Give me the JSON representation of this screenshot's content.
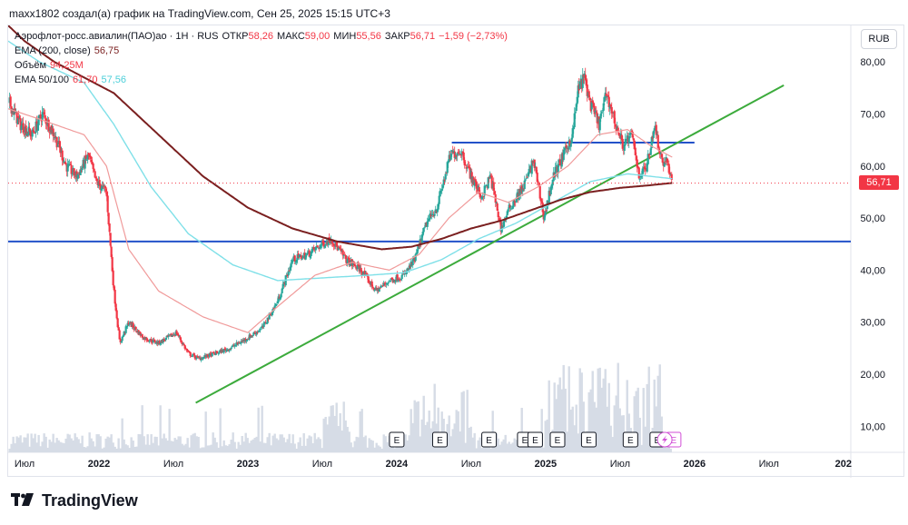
{
  "header": {
    "author_line": "maxx1802 создал(а) график на TradingView.com, Сен 25, 2025 15:15 UTC+3"
  },
  "legend": {
    "symbol": "Аэрофлот-росс.авиалин(ПАО)ао · 1Н · RUS",
    "open_label": "ОТКР",
    "open": "58,26",
    "high_label": "МАКС",
    "high": "59,00",
    "low_label": "МИН",
    "low": "55,56",
    "close_label": "ЗАКР",
    "close": "56,71",
    "change": "−1,59 (−2,73%)",
    "ema200_label": "EMA (200, close)",
    "ema200_value": "56,75",
    "volume_label": "Объём",
    "volume_value": "94,25M",
    "ema50_100_label": "EMA 50/100",
    "ema50_value": "61,70",
    "ema100_value": "57,56"
  },
  "currency_button": "RUB",
  "price_tag": "56,71",
  "footer": {
    "brand": "TradingView"
  },
  "colors": {
    "up": "#26a69a",
    "down": "#f23645",
    "ema200": "#7a1f1f",
    "ema50": "#f09a9a",
    "ema100": "#7fe0e8",
    "trend": "#3cab3c",
    "level": "#2352c9",
    "volume": "#d6dce6"
  },
  "chart_data": {
    "type": "candlestick",
    "title": "Аэрофлот-росс.авиалин(ПАО)ао · 1Н · RUS",
    "ylim": [
      5,
      87
    ],
    "y_ticks": [
      "80,00",
      "70,00",
      "60,00",
      "50,00",
      "40,00",
      "30,00",
      "20,00",
      "10,00"
    ],
    "y_tick_values": [
      80,
      70,
      60,
      50,
      40,
      30,
      20,
      10
    ],
    "x_ticks": [
      "Июл",
      "2022",
      "Июл",
      "2023",
      "Июл",
      "2024",
      "Июл",
      "2025",
      "Июл",
      "2026",
      "Июл",
      "202"
    ],
    "x_tick_dates": [
      2021.5,
      2022.0,
      2022.5,
      2023.0,
      2023.5,
      2024.0,
      2024.5,
      2025.0,
      2025.5,
      2026.0,
      2026.5,
      2027.0
    ],
    "x_range": [
      2021.39,
      2027.05
    ],
    "price_anchors": [
      [
        2021.4,
        72
      ],
      [
        2021.47,
        68
      ],
      [
        2021.55,
        66
      ],
      [
        2021.62,
        70
      ],
      [
        2021.7,
        66
      ],
      [
        2021.78,
        60
      ],
      [
        2021.85,
        58
      ],
      [
        2021.93,
        62
      ],
      [
        2021.98,
        57
      ],
      [
        2022.05,
        55
      ],
      [
        2022.1,
        36
      ],
      [
        2022.14,
        26
      ],
      [
        2022.2,
        30
      ],
      [
        2022.3,
        27
      ],
      [
        2022.4,
        26
      ],
      [
        2022.52,
        28
      ],
      [
        2022.6,
        24
      ],
      [
        2022.67,
        23
      ],
      [
        2022.78,
        24
      ],
      [
        2022.88,
        25
      ],
      [
        2023.0,
        27
      ],
      [
        2023.1,
        29
      ],
      [
        2023.2,
        34
      ],
      [
        2023.3,
        42
      ],
      [
        2023.4,
        43
      ],
      [
        2023.5,
        45
      ],
      [
        2023.56,
        46
      ],
      [
        2023.66,
        42
      ],
      [
        2023.76,
        40
      ],
      [
        2023.86,
        36
      ],
      [
        2023.95,
        38
      ],
      [
        2024.05,
        39
      ],
      [
        2024.12,
        42
      ],
      [
        2024.2,
        49
      ],
      [
        2024.27,
        52
      ],
      [
        2024.36,
        62
      ],
      [
        2024.43,
        63
      ],
      [
        2024.5,
        58
      ],
      [
        2024.57,
        54
      ],
      [
        2024.63,
        58
      ],
      [
        2024.7,
        48
      ],
      [
        2024.76,
        52
      ],
      [
        2024.85,
        56
      ],
      [
        2024.92,
        61
      ],
      [
        2024.99,
        50
      ],
      [
        2025.05,
        58
      ],
      [
        2025.12,
        62
      ],
      [
        2025.18,
        66
      ],
      [
        2025.22,
        75
      ],
      [
        2025.26,
        77
      ],
      [
        2025.3,
        72
      ],
      [
        2025.36,
        68
      ],
      [
        2025.41,
        74
      ],
      [
        2025.47,
        68
      ],
      [
        2025.52,
        64
      ],
      [
        2025.58,
        66
      ],
      [
        2025.63,
        58
      ],
      [
        2025.68,
        60
      ],
      [
        2025.73,
        68
      ],
      [
        2025.76,
        64
      ],
      [
        2025.79,
        60
      ],
      [
        2025.81,
        62
      ],
      [
        2025.83,
        58.3
      ],
      [
        2025.85,
        56.7
      ]
    ],
    "ema200_anchors": [
      [
        2021.39,
        87
      ],
      [
        2021.5,
        84
      ],
      [
        2021.7,
        80
      ],
      [
        2021.9,
        77
      ],
      [
        2022.1,
        74
      ],
      [
        2022.4,
        66
      ],
      [
        2022.7,
        58
      ],
      [
        2023.0,
        52
      ],
      [
        2023.3,
        48
      ],
      [
        2023.6,
        45.5
      ],
      [
        2023.9,
        44
      ],
      [
        2024.1,
        44.5
      ],
      [
        2024.3,
        46
      ],
      [
        2024.5,
        48
      ],
      [
        2024.7,
        49.5
      ],
      [
        2024.9,
        51.5
      ],
      [
        2025.1,
        53.5
      ],
      [
        2025.3,
        55
      ],
      [
        2025.5,
        55.8
      ],
      [
        2025.7,
        56.3
      ],
      [
        2025.85,
        56.75
      ]
    ],
    "ema50_anchors": [
      [
        2021.39,
        71
      ],
      [
        2021.6,
        69
      ],
      [
        2021.9,
        66
      ],
      [
        2022.05,
        60
      ],
      [
        2022.2,
        44
      ],
      [
        2022.4,
        36
      ],
      [
        2022.7,
        31
      ],
      [
        2023.0,
        28
      ],
      [
        2023.2,
        33
      ],
      [
        2023.45,
        39
      ],
      [
        2023.7,
        41.5
      ],
      [
        2023.95,
        40
      ],
      [
        2024.15,
        43
      ],
      [
        2024.35,
        50
      ],
      [
        2024.55,
        55
      ],
      [
        2024.75,
        53
      ],
      [
        2024.95,
        56
      ],
      [
        2025.15,
        60
      ],
      [
        2025.35,
        66
      ],
      [
        2025.55,
        67
      ],
      [
        2025.7,
        64
      ],
      [
        2025.85,
        61.7
      ]
    ],
    "ema100_anchors": [
      [
        2021.39,
        84
      ],
      [
        2021.6,
        80
      ],
      [
        2021.9,
        76
      ],
      [
        2022.1,
        68
      ],
      [
        2022.35,
        56
      ],
      [
        2022.6,
        47
      ],
      [
        2022.9,
        41
      ],
      [
        2023.2,
        38
      ],
      [
        2023.5,
        38.5
      ],
      [
        2023.8,
        39
      ],
      [
        2024.05,
        39.5
      ],
      [
        2024.3,
        42
      ],
      [
        2024.55,
        46
      ],
      [
        2024.8,
        49
      ],
      [
        2025.05,
        53
      ],
      [
        2025.3,
        57
      ],
      [
        2025.55,
        58.5
      ],
      [
        2025.85,
        57.56
      ]
    ],
    "support_line": {
      "start": [
        2022.65,
        14.5
      ],
      "end": [
        2026.6,
        75.5
      ]
    },
    "horizontal_levels": [
      {
        "value": 45.5,
        "from": 2021.39,
        "to": 2027.05
      },
      {
        "value": 64.5,
        "from": 2024.37,
        "to": 2026.0
      }
    ],
    "earnings_markers": [
      2024.0,
      2024.29,
      2024.62,
      2024.86,
      2024.93,
      2025.08,
      2025.29,
      2025.57,
      2025.75,
      2025.86
    ],
    "flash_marker": 2025.8,
    "last_price": 56.71
  }
}
